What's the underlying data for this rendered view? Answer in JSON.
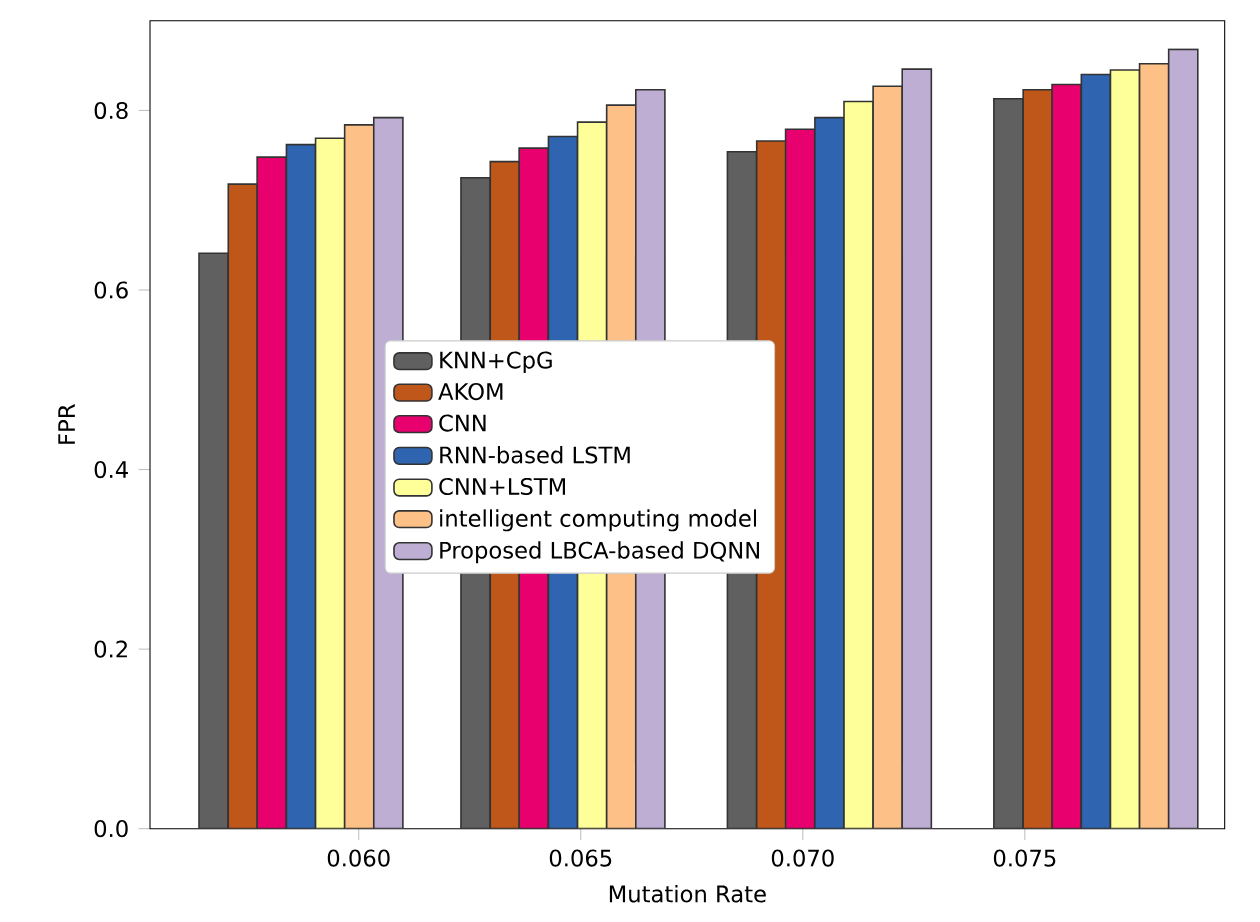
{
  "chart_data": {
    "type": "bar",
    "xlabel": "Mutation Rate",
    "ylabel": "FPR",
    "x": [
      0.0587,
      0.0646,
      0.0706,
      0.0766
    ],
    "xlim": [
      0.0553,
      0.0795
    ],
    "xticks": [
      {
        "value": 0.06,
        "label": "0.060"
      },
      {
        "value": 0.065,
        "label": "0.065"
      },
      {
        "value": 0.07,
        "label": "0.070"
      },
      {
        "value": 0.075,
        "label": "0.075"
      }
    ],
    "ylim": [
      0,
      0.9
    ],
    "yticks": [
      {
        "value": 0,
        "label": "0.0"
      },
      {
        "value": 0.2,
        "label": "0.2"
      },
      {
        "value": 0.4,
        "label": "0.4"
      },
      {
        "value": 0.6,
        "label": "0.6"
      },
      {
        "value": 0.8,
        "label": "0.8"
      }
    ],
    "legend": "center",
    "grid": false,
    "series": [
      {
        "name": "KNN+CpG",
        "color": "#606060",
        "values": [
          0.641,
          0.725,
          0.754,
          0.813
        ]
      },
      {
        "name": "AKOM",
        "color": "#c0571a",
        "values": [
          0.718,
          0.743,
          0.766,
          0.823
        ]
      },
      {
        "name": "CNN",
        "color": "#e8006f",
        "values": [
          0.748,
          0.758,
          0.779,
          0.829
        ]
      },
      {
        "name": "RNN-based LSTM",
        "color": "#2f64b0",
        "values": [
          0.762,
          0.771,
          0.792,
          0.84
        ]
      },
      {
        "name": "CNN+LSTM",
        "color": "#ffff99",
        "values": [
          0.769,
          0.787,
          0.81,
          0.845
        ]
      },
      {
        "name": "intelligent computing model",
        "color": "#fdc086",
        "values": [
          0.784,
          0.806,
          0.827,
          0.852
        ]
      },
      {
        "name": "Proposed LBCA-based DQNN",
        "color": "#beaed4",
        "values": [
          0.792,
          0.823,
          0.846,
          0.868
        ]
      }
    ]
  }
}
